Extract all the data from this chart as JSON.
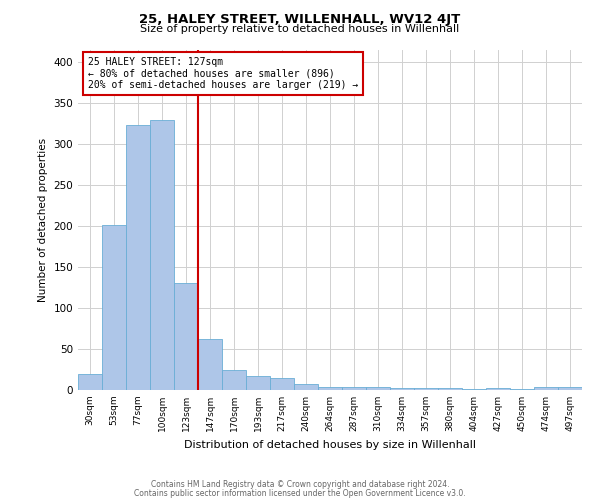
{
  "title": "25, HALEY STREET, WILLENHALL, WV12 4JT",
  "subtitle": "Size of property relative to detached houses in Willenhall",
  "xlabel": "Distribution of detached houses by size in Willenhall",
  "ylabel": "Number of detached properties",
  "bin_labels": [
    "30sqm",
    "53sqm",
    "77sqm",
    "100sqm",
    "123sqm",
    "147sqm",
    "170sqm",
    "193sqm",
    "217sqm",
    "240sqm",
    "264sqm",
    "287sqm",
    "310sqm",
    "334sqm",
    "357sqm",
    "380sqm",
    "404sqm",
    "427sqm",
    "450sqm",
    "474sqm",
    "497sqm"
  ],
  "bar_values": [
    20,
    201,
    323,
    330,
    130,
    62,
    25,
    17,
    15,
    7,
    4,
    4,
    4,
    2,
    2,
    2,
    1,
    3,
    1,
    4,
    4
  ],
  "bar_color": "#aec6e8",
  "bar_edgecolor": "#6aaed6",
  "property_sqm": 127,
  "annotation_title": "25 HALEY STREET: 127sqm",
  "annotation_line1": "← 80% of detached houses are smaller (896)",
  "annotation_line2": "20% of semi-detached houses are larger (219) →",
  "annotation_box_edgecolor": "#cc0000",
  "vline_color": "#cc0000",
  "ylim": [
    0,
    415
  ],
  "yticks": [
    0,
    50,
    100,
    150,
    200,
    250,
    300,
    350,
    400
  ],
  "background_color": "#ffffff",
  "grid_color": "#d0d0d0",
  "footer_line1": "Contains HM Land Registry data © Crown copyright and database right 2024.",
  "footer_line2": "Contains public sector information licensed under the Open Government Licence v3.0."
}
